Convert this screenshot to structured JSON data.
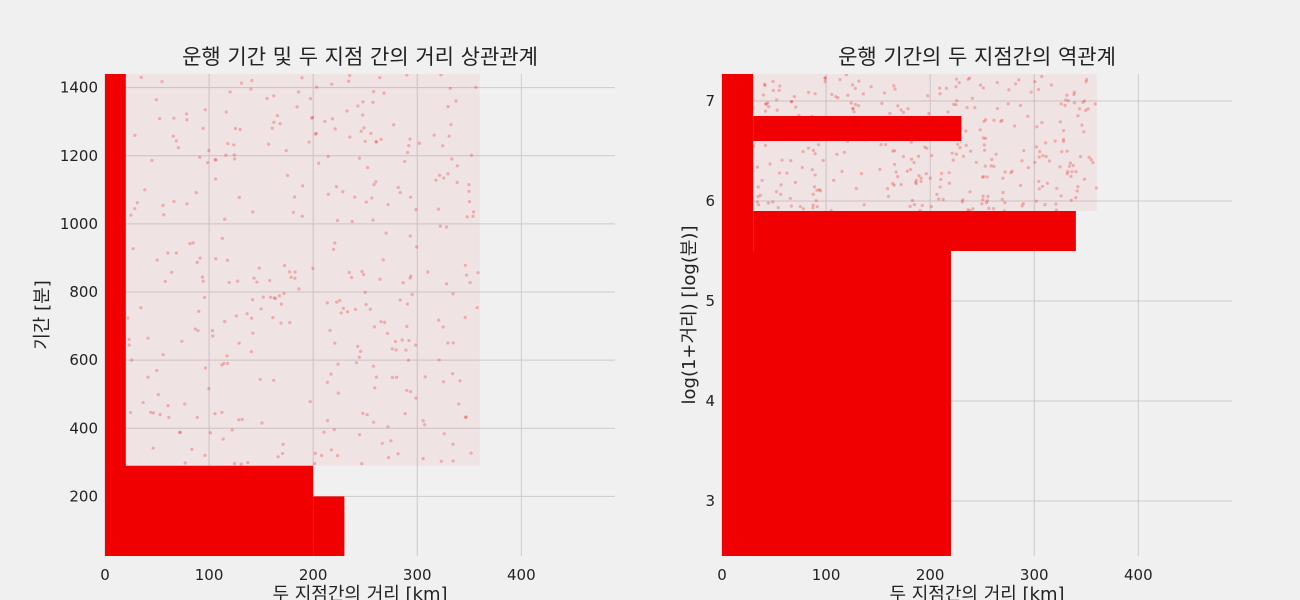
{
  "chart_data": [
    {
      "type": "scatter",
      "title": "운행 기간 및 두 지점 간의 거리 상관관계",
      "xlabel": "두 지점간의 거리 [km]",
      "ylabel": "기간 [분]",
      "xlim": [
        0,
        490
      ],
      "ylim": [
        25,
        1440
      ],
      "xticks": [
        0,
        100,
        200,
        300,
        400
      ],
      "yticks": [
        200,
        400,
        600,
        800,
        1000,
        1200,
        1400
      ],
      "grid": true,
      "color": "#f00000",
      "dense_regions": [
        {
          "x": [
            0,
            20
          ],
          "y": [
            25,
            1440
          ]
        },
        {
          "x": [
            0,
            200
          ],
          "y": [
            25,
            290
          ]
        },
        {
          "x": [
            200,
            230
          ],
          "y": [
            25,
            200
          ]
        }
      ],
      "sparse_region": {
        "x": [
          20,
          360
        ],
        "y": [
          290,
          1440
        ]
      }
    },
    {
      "type": "scatter",
      "title": "운행 기간의 두 지점간의 역관계",
      "xlabel": "두 지점간의 거리 [km]",
      "ylabel": "log(1+거리) [log(분)]",
      "xlim": [
        0,
        490
      ],
      "ylim": [
        2.45,
        7.27
      ],
      "xticks": [
        0,
        100,
        200,
        300,
        400
      ],
      "yticks": [
        3,
        4,
        5,
        6,
        7
      ],
      "grid": true,
      "color": "#f00000",
      "dense_regions": [
        {
          "x": [
            0,
            30
          ],
          "y": [
            2.45,
            7.27
          ]
        },
        {
          "x": [
            0,
            220
          ],
          "y": [
            2.45,
            5.5
          ]
        },
        {
          "x": [
            30,
            340
          ],
          "y": [
            5.5,
            5.9
          ]
        },
        {
          "x": [
            30,
            230
          ],
          "y": [
            6.6,
            6.85
          ]
        }
      ],
      "sparse_region": {
        "x": [
          30,
          360
        ],
        "y": [
          5.9,
          7.27
        ]
      }
    }
  ]
}
